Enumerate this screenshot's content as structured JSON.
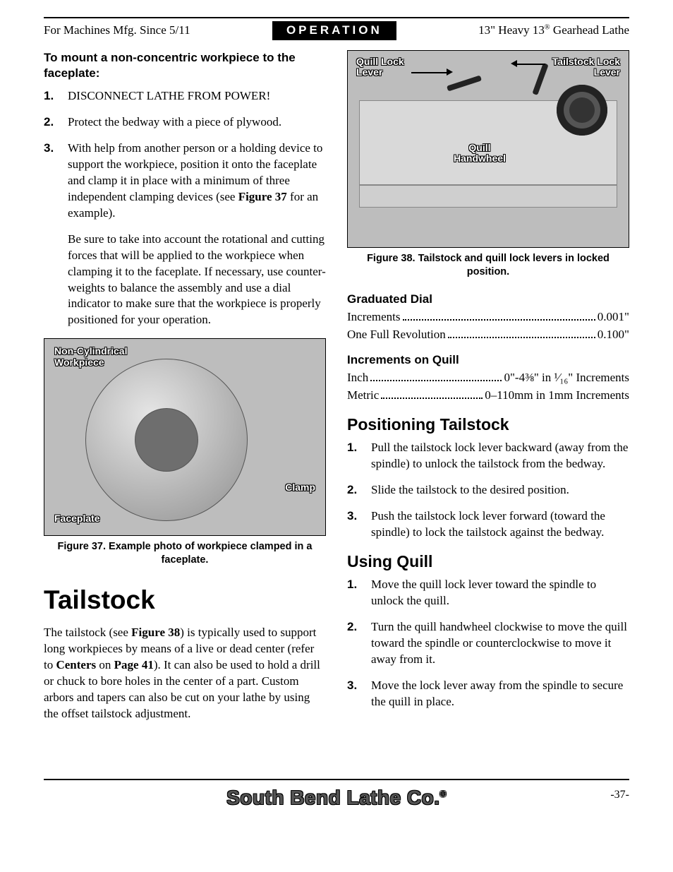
{
  "header": {
    "left": "For Machines Mfg. Since 5/11",
    "center": "OPERATION",
    "right_prefix": "13\" Heavy 13",
    "right_suffix": " Gearhead Lathe"
  },
  "left_col": {
    "lead": "To mount a non-concentric workpiece to the faceplate:",
    "steps": [
      {
        "n": "1.",
        "p1": "DISCONNECT LATHE FROM POWER!"
      },
      {
        "n": "2.",
        "p1": "Protect the bedway with a piece of plywood."
      },
      {
        "n": "3.",
        "p1_a": "With help from another person or a holding device to support the workpiece, position it onto the faceplate and clamp it in place with a minimum of three independent clamping devices (see ",
        "p1_b": "Figure 37",
        "p1_c": " for an example).",
        "p2": "Be sure to take into account the rotational and cutting forces that will be applied to the workpiece when clamping it to the faceplate. If necessary, use counter-weights to balance the assembly and use a dial indicator to make sure that the workpiece is properly positioned for your operation."
      }
    ],
    "fig37": {
      "callouts": {
        "noncyl": "Non-Cylindrical\nWorkpiece",
        "clamp": "Clamp",
        "faceplate": "Faceplate"
      },
      "caption": "Figure 37. Example photo of workpiece clamped in a faceplate."
    },
    "h1": "Tailstock",
    "tailstock_para": {
      "a": "The tailstock (see ",
      "b": "Figure 38",
      "c": ") is typically used to support long workpieces by means of a live or dead center (refer to ",
      "d": "Centers",
      "e": " on ",
      "f": "Page 41",
      "g": "). It can also be used to hold a drill or chuck to bore holes in the center of a part. Custom arbors and tapers can also be cut on your lathe by using the offset tailstock adjustment."
    }
  },
  "right_col": {
    "fig38": {
      "callouts": {
        "quill_lock": "Quill Lock\nLever",
        "tailstock_lock": "Tailstock Lock\nLever",
        "quill_handwheel": "Quill\nHandwheel"
      },
      "caption": "Figure 38. Tailstock and quill lock levers in locked position."
    },
    "grad_dial_h": "Graduated Dial",
    "grad_rows": [
      {
        "l": "Increments",
        "r": "0.001\""
      },
      {
        "l": "One Full Revolution",
        "r": "0.100\""
      }
    ],
    "incr_quill_h": "Increments on Quill",
    "incr_rows": [
      {
        "l": "Inch",
        "r": "0\"-4⅜\" in ¹⁄₁₆\" Increments"
      },
      {
        "l": "Metric",
        "r": "0–110mm in 1mm Increments"
      }
    ],
    "pos_h": "Positioning Tailstock",
    "pos_steps": [
      {
        "n": "1.",
        "t": "Pull the tailstock lock lever backward (away from the spindle) to unlock the tailstock from the bedway."
      },
      {
        "n": "2.",
        "t": "Slide the tailstock to the desired position."
      },
      {
        "n": "3.",
        "t": "Push the tailstock lock lever forward (toward the spindle) to lock the tailstock against the bedway."
      }
    ],
    "quill_h": "Using Quill",
    "quill_steps": [
      {
        "n": "1.",
        "t": "Move the quill lock lever toward the spindle to unlock the quill."
      },
      {
        "n": "2.",
        "t": "Turn the quill handwheel clockwise to move the quill toward the spindle or counterclockwise to move it away from it."
      },
      {
        "n": "3.",
        "t": "Move the lock lever away from the spindle to secure the quill in place."
      }
    ]
  },
  "footer": {
    "brand": "South Bend Lathe Co.",
    "page": "-37-"
  }
}
